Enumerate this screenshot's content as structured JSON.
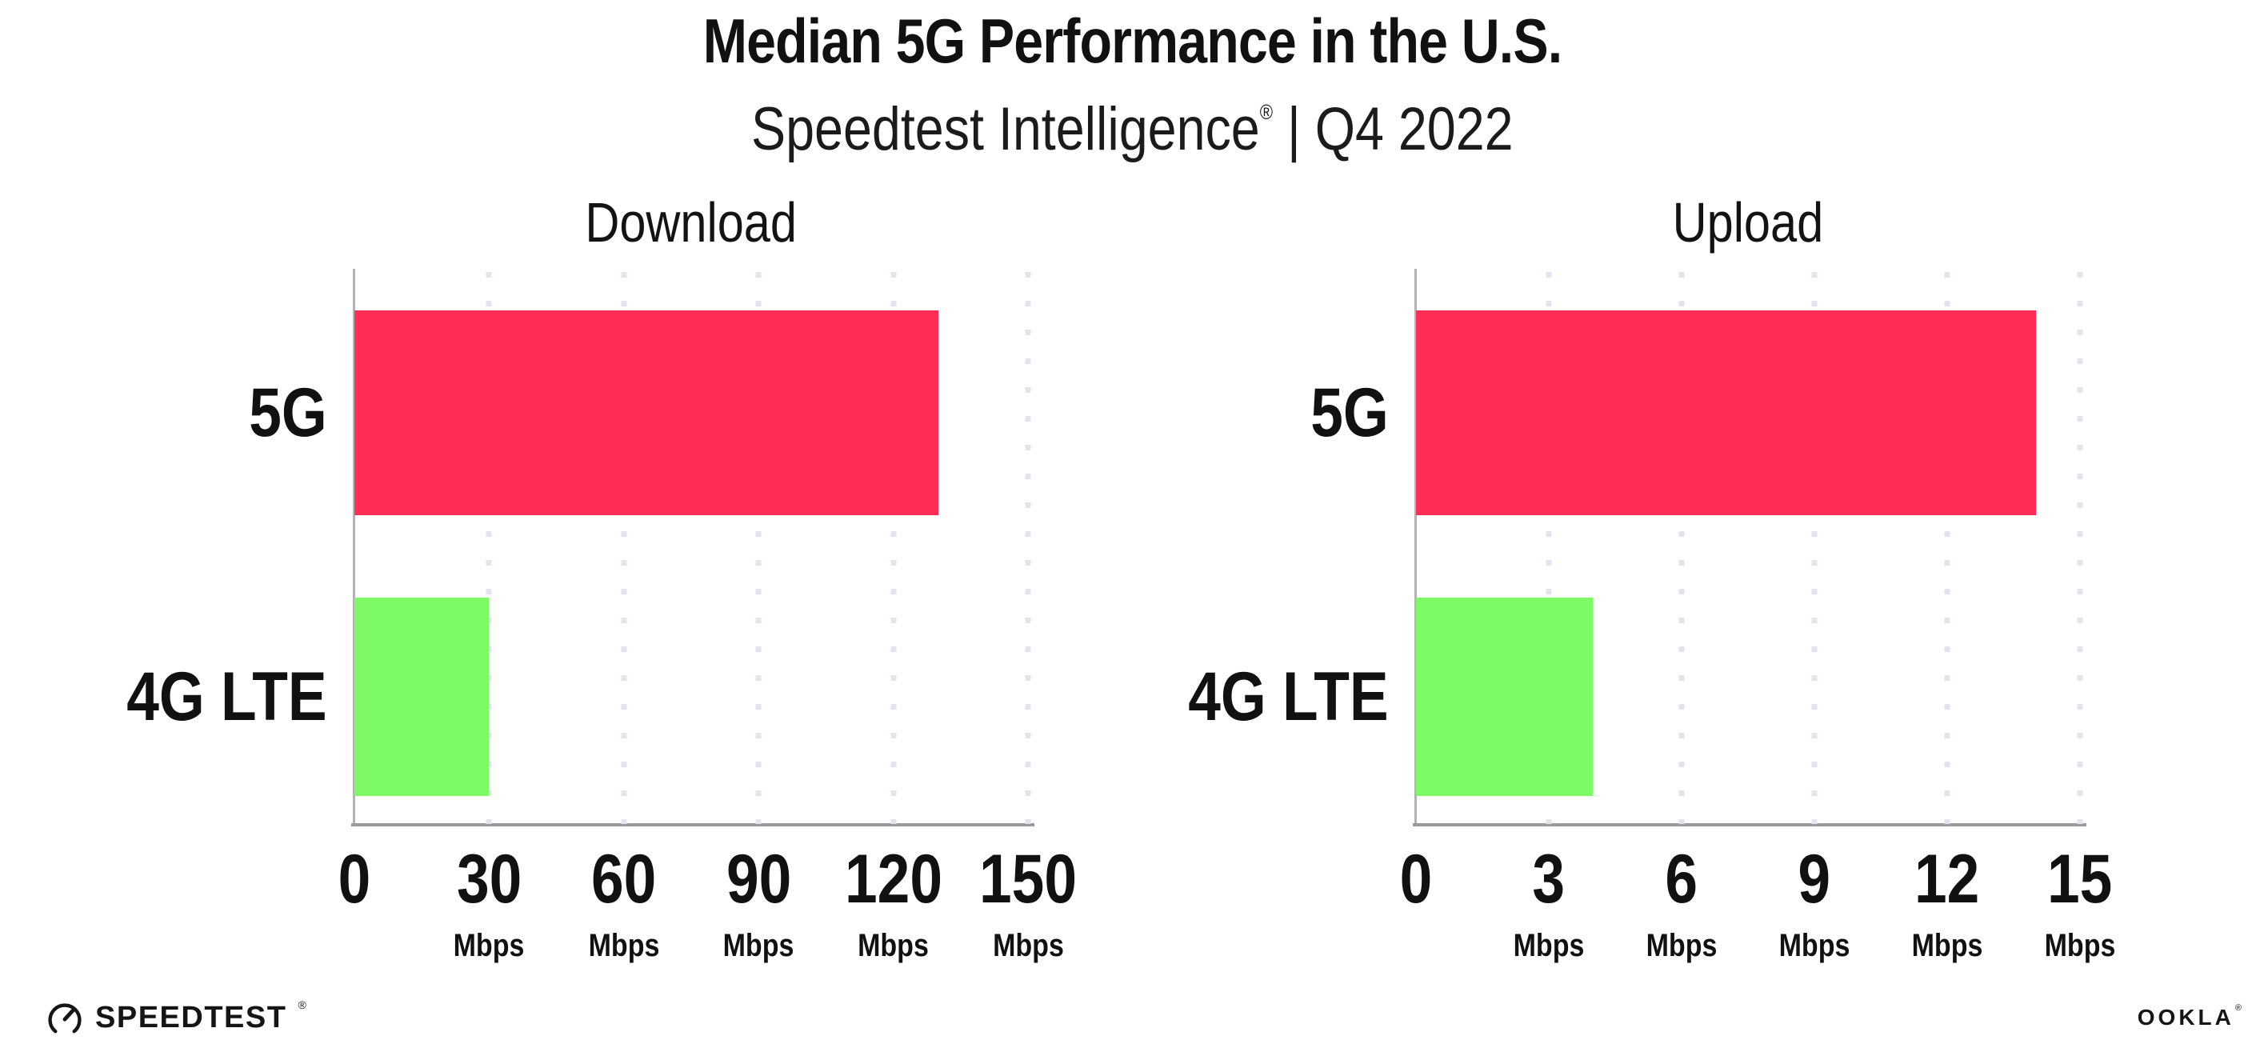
{
  "header": {
    "title": "Median 5G Performance in the U.S.",
    "subtitle_brand": "Speedtest Intelligence",
    "subtitle_reg": "®",
    "subtitle_rest": " | Q4 2022"
  },
  "colors": {
    "bar_5g": "#ff2e56",
    "bar_4g_lte": "#7dfa64",
    "axis": "#9b9b9b",
    "gridline": "#e3e3ee",
    "text": "#111111",
    "background": "#ffffff"
  },
  "chart_data": [
    {
      "type": "bar",
      "orientation": "horizontal",
      "title": "Download",
      "categories": [
        "5G",
        "4G LTE"
      ],
      "values": [
        130,
        30
      ],
      "unit": "Mbps",
      "xlim": [
        0,
        150
      ],
      "xticks": [
        0,
        30,
        60,
        90,
        120,
        150
      ],
      "bar_colors": [
        "#ff2e56",
        "#7dfa64"
      ],
      "grid": "dotted-vertical",
      "legend_position": "none",
      "xlabel": "",
      "ylabel": "",
      "tick_labels": [
        {
          "num": "0",
          "unit": ""
        },
        {
          "num": "30",
          "unit": "Mbps"
        },
        {
          "num": "60",
          "unit": "Mbps"
        },
        {
          "num": "90",
          "unit": "Mbps"
        },
        {
          "num": "120",
          "unit": "Mbps"
        },
        {
          "num": "150",
          "unit": "Mbps"
        }
      ]
    },
    {
      "type": "bar",
      "orientation": "horizontal",
      "title": "Upload",
      "categories": [
        "5G",
        "4G LTE"
      ],
      "values": [
        14,
        4
      ],
      "unit": "Mbps",
      "xlim": [
        0,
        15
      ],
      "xticks": [
        0,
        3,
        6,
        9,
        12,
        15
      ],
      "bar_colors": [
        "#ff2e56",
        "#7dfa64"
      ],
      "grid": "dotted-vertical",
      "legend_position": "none",
      "xlabel": "",
      "ylabel": "",
      "tick_labels": [
        {
          "num": "0",
          "unit": ""
        },
        {
          "num": "3",
          "unit": "Mbps"
        },
        {
          "num": "6",
          "unit": "Mbps"
        },
        {
          "num": "9",
          "unit": "Mbps"
        },
        {
          "num": "12",
          "unit": "Mbps"
        },
        {
          "num": "15",
          "unit": "Mbps"
        }
      ]
    }
  ],
  "footer": {
    "speedtest_text": "SPEEDTEST",
    "speedtest_reg": "®",
    "ookla_text": "OOKLA",
    "ookla_reg": "®"
  }
}
